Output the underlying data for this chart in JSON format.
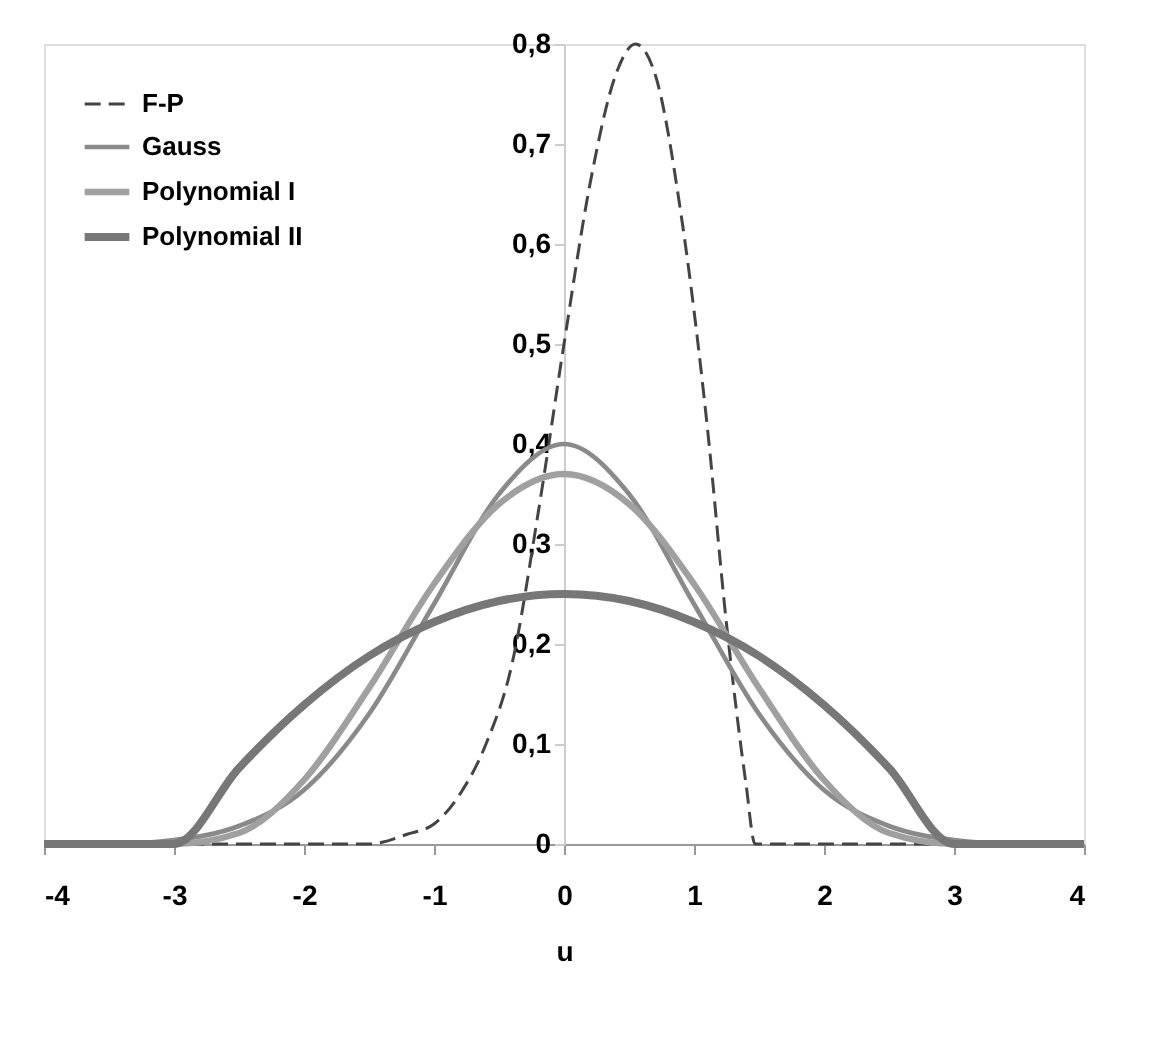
{
  "chart_data": {
    "type": "line",
    "xlabel": "u",
    "xlim": [
      -4,
      4
    ],
    "xticks": [
      -4,
      -3,
      -2,
      -1,
      0,
      1,
      2,
      3,
      4
    ],
    "ylim": [
      0,
      0.8
    ],
    "yticks": [
      0,
      {
        "value": 0.1,
        "label": "0,1"
      },
      {
        "value": 0.2,
        "label": "0,2"
      },
      {
        "value": 0.3,
        "label": "0,3"
      },
      {
        "value": 0.4,
        "label": "0,4"
      },
      {
        "value": 0.5,
        "label": "0,5"
      },
      {
        "value": 0.6,
        "label": "0,6"
      },
      {
        "value": 0.7,
        "label": "0,7"
      },
      {
        "value": 0.8,
        "label": "0,8"
      }
    ],
    "grid": false,
    "legend": "top left",
    "marker": "none",
    "series": [
      {
        "name": "F-P",
        "color": "#444444",
        "line_style": "dashed",
        "x": [
          -4,
          -1.5,
          -1.2,
          -1,
          -0.8,
          -0.6,
          -0.4,
          -0.2,
          0,
          0.2,
          0.4,
          0.55,
          0.7,
          0.9,
          1.1,
          1.25,
          1.4,
          1.47,
          4
        ],
        "values": [
          0,
          0,
          0.01,
          0.02,
          0.05,
          0.1,
          0.18,
          0.33,
          0.5,
          0.66,
          0.77,
          0.8,
          0.77,
          0.63,
          0.42,
          0.22,
          0.06,
          0,
          0
        ]
      },
      {
        "name": "Gauss",
        "color": "#8a8a8a",
        "line_style": "solid",
        "x": [
          -4,
          -3.5,
          -3,
          -2.5,
          -2,
          -1.5,
          -1,
          -0.5,
          0,
          0.5,
          1,
          1.5,
          2,
          2.5,
          3,
          3.5,
          4
        ],
        "values": [
          0,
          0,
          0.004,
          0.018,
          0.054,
          0.13,
          0.24,
          0.35,
          0.4,
          0.35,
          0.24,
          0.13,
          0.054,
          0.018,
          0.004,
          0,
          0
        ]
      },
      {
        "name": "Polynomial I",
        "color": "#a0a0a0",
        "line_style": "solid",
        "x": [
          -4,
          -3,
          -2.5,
          -2,
          -1.5,
          -1,
          -0.5,
          0,
          0.5,
          1,
          1.5,
          2,
          2.5,
          3,
          4
        ],
        "values": [
          0,
          0,
          0.011,
          0.064,
          0.156,
          0.26,
          0.34,
          0.37,
          0.34,
          0.26,
          0.156,
          0.064,
          0.011,
          0,
          0
        ]
      },
      {
        "name": "Polynomial II",
        "color": "#777777",
        "line_style": "solid",
        "x": [
          -4,
          -3,
          -2.5,
          -2,
          -1.5,
          -1,
          -0.5,
          0,
          0.5,
          1,
          1.5,
          2,
          2.5,
          3,
          4
        ],
        "values": [
          0,
          0,
          0.076,
          0.139,
          0.188,
          0.222,
          0.243,
          0.25,
          0.243,
          0.222,
          0.188,
          0.139,
          0.076,
          0,
          0
        ]
      }
    ]
  }
}
